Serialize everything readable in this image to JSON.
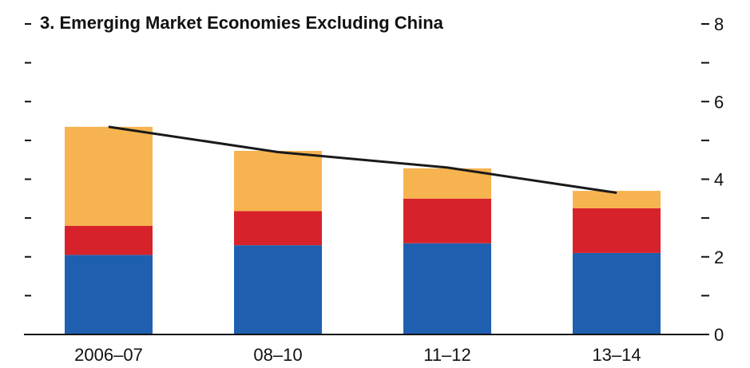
{
  "chart_data": {
    "type": "bar",
    "stacked": true,
    "title": "3. Emerging Market Economies Excluding China",
    "categories": [
      "2006–07",
      "08–10",
      "11–12",
      "13–14"
    ],
    "series": [
      {
        "color": "#1f5fb0",
        "values": [
          2.05,
          2.3,
          2.35,
          2.1
        ]
      },
      {
        "color": "#d8222b",
        "values": [
          0.75,
          0.88,
          1.15,
          1.15
        ]
      },
      {
        "color": "#f7b34f",
        "values": [
          2.55,
          1.55,
          0.78,
          0.45
        ]
      }
    ],
    "line": {
      "color": "#1a1a1a",
      "values": [
        5.35,
        4.7,
        4.3,
        3.65
      ]
    },
    "ylim": [
      0,
      8
    ],
    "y_axis_position": "right",
    "yticks": [
      0,
      2,
      4,
      6,
      8
    ],
    "grid": false
  }
}
